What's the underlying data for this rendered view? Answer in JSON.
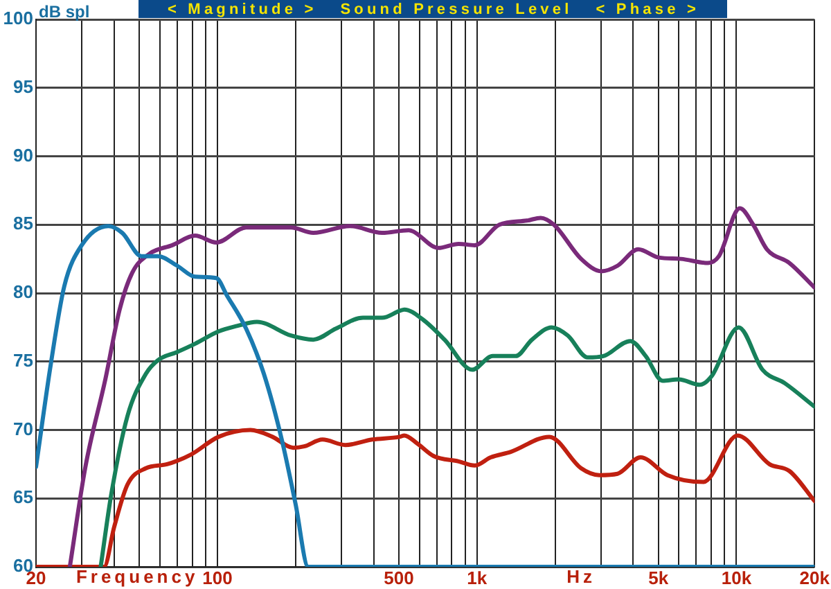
{
  "chart_data": {
    "type": "line",
    "title": "< Magnitude >   Sound Pressure Level   < Phase >",
    "xlabel": "Frequency",
    "ylabel": "dB spl",
    "annotations": [
      "Hz"
    ],
    "log": "x",
    "grid": true,
    "legend": false,
    "marker": "none",
    "line_style": "solid",
    "xlim": [
      20,
      20000
    ],
    "ylim": [
      60,
      100
    ],
    "xticks": [
      20,
      {
        "value": 30,
        "label": null
      },
      {
        "value": 40,
        "label": null
      },
      {
        "value": 50,
        "label": null
      },
      {
        "value": 60,
        "label": null
      },
      {
        "value": 70,
        "label": null
      },
      {
        "value": 80,
        "label": null
      },
      {
        "value": 90,
        "label": null
      },
      100,
      {
        "value": 200,
        "label": null
      },
      {
        "value": 300,
        "label": null
      },
      {
        "value": 400,
        "label": null
      },
      500,
      {
        "value": 600,
        "label": null
      },
      {
        "value": 700,
        "label": null
      },
      {
        "value": 800,
        "label": null
      },
      {
        "value": 900,
        "label": null
      },
      {
        "value": 1000,
        "label": "1k"
      },
      {
        "value": 2000,
        "label": null
      },
      {
        "value": 3000,
        "label": null
      },
      {
        "value": 4000,
        "label": null
      },
      {
        "value": 5000,
        "label": "5k"
      },
      {
        "value": 6000,
        "label": null
      },
      {
        "value": 7000,
        "label": null
      },
      {
        "value": 8000,
        "label": null
      },
      {
        "value": 9000,
        "label": null
      },
      {
        "value": 10000,
        "label": "10k"
      },
      {
        "value": 20000,
        "label": "20k"
      }
    ],
    "yticks": [
      60,
      65,
      70,
      75,
      80,
      85,
      90,
      95,
      100
    ],
    "series": [
      {
        "color": "#1a7ab0",
        "x": [
          20,
          22.8,
          25.7,
          30,
          38,
          43,
          51,
          59,
          70,
          82,
          99,
          109,
          129,
          151,
          177,
          200,
          224,
          20000
        ],
        "values": [
          67.3,
          74.8,
          80.5,
          83.5,
          84.9,
          84.4,
          82.7,
          82.7,
          82.0,
          81.2,
          81.1,
          79.8,
          77.4,
          74.1,
          69.3,
          64.6,
          60,
          60
        ]
      },
      {
        "color": "#7a2a7a",
        "x": [
          27,
          31,
          37,
          42,
          47,
          55,
          67,
          82,
          99,
          129,
          192,
          234,
          324,
          431,
          546,
          569,
          710,
          850,
          980,
          1220,
          1560,
          1760,
          1980,
          2520,
          3020,
          3480,
          4180,
          5020,
          6100,
          7760,
          8560,
          10300,
          11600,
          13100,
          16000,
          20000
        ],
        "values": [
          60,
          67.3,
          73.7,
          78.8,
          81.5,
          82.9,
          83.5,
          84.2,
          83.7,
          84.8,
          84.8,
          84.4,
          84.9,
          84.4,
          84.6,
          84.5,
          83.3,
          83.6,
          83.5,
          85.0,
          85.3,
          85.5,
          85.0,
          82.5,
          81.6,
          82.0,
          83.2,
          82.6,
          82.5,
          82.2,
          82.7,
          86.2,
          85.0,
          83.2,
          82.2,
          80.4
        ]
      },
      {
        "color": "#17805a",
        "x": [
          35.5,
          39,
          45,
          53,
          59,
          70,
          82,
          101,
          119,
          142,
          192,
          234,
          286,
          364,
          431,
          503,
          525,
          616,
          750,
          959,
          1150,
          1410,
          1630,
          1940,
          2240,
          2670,
          3070,
          3900,
          4470,
          5190,
          5990,
          7220,
          8000,
          10200,
          12600,
          15400,
          20000
        ],
        "values": [
          60,
          65.3,
          71.0,
          74.1,
          75.1,
          75.7,
          76.3,
          77.2,
          77.6,
          77.9,
          76.9,
          76.6,
          77.4,
          78.2,
          78.2,
          78.7,
          78.8,
          78.1,
          76.6,
          74.4,
          75.4,
          75.4,
          76.6,
          77.5,
          76.9,
          75.3,
          75.4,
          76.5,
          75.4,
          73.6,
          73.7,
          73.3,
          73.9,
          77.5,
          74.4,
          73.4,
          71.7
        ]
      },
      {
        "color": "#c02010",
        "x": [
          20,
          36.6,
          40,
          45,
          53,
          64,
          79,
          101,
          134,
          163,
          196,
          216,
          254,
          311,
          395,
          503,
          525,
          590,
          680,
          850,
          980,
          1130,
          1350,
          1900,
          2520,
          2960,
          3480,
          4270,
          5420,
          7450,
          10100,
          13400,
          16000,
          20000
        ],
        "values": [
          60,
          60,
          62.9,
          66.0,
          67.2,
          67.5,
          68.2,
          69.5,
          70.0,
          69.5,
          68.7,
          68.8,
          69.3,
          68.9,
          69.3,
          69.5,
          69.6,
          69.0,
          68.1,
          67.7,
          67.4,
          68.0,
          68.4,
          69.5,
          67.2,
          66.7,
          66.8,
          68.0,
          66.7,
          66.2,
          69.6,
          67.5,
          67.0,
          64.8
        ]
      }
    ]
  }
}
